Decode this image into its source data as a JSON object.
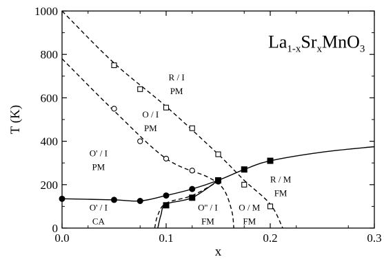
{
  "chart_data": {
    "type": "scatter",
    "title": "La1-xSrxMnO3",
    "formula": {
      "base1": "La",
      "sub1": "1-x",
      "base2": "Sr",
      "sub2": "x",
      "base3": "MnO",
      "sub3": "3"
    },
    "xlabel": "x",
    "ylabel": "T (K)",
    "xlim": [
      0.0,
      0.3
    ],
    "ylim": [
      0,
      1000
    ],
    "x_ticks": [
      {
        "value": 0.0,
        "label": "0.0"
      },
      {
        "value": 0.1,
        "label": "0.1"
      },
      {
        "value": 0.2,
        "label": "0.2"
      },
      {
        "value": 0.3,
        "label": "0.3"
      }
    ],
    "y_ticks": [
      {
        "value": 0,
        "label": "0"
      },
      {
        "value": 200,
        "label": "200"
      },
      {
        "value": 400,
        "label": "400"
      },
      {
        "value": 600,
        "label": "600"
      },
      {
        "value": 800,
        "label": "800"
      },
      {
        "value": 1000,
        "label": "1000"
      }
    ],
    "grid": false,
    "series": [
      {
        "marker": "open-square",
        "points": [
          [
            0.05,
            750
          ],
          [
            0.075,
            640
          ],
          [
            0.1,
            555
          ],
          [
            0.125,
            460
          ],
          [
            0.15,
            340
          ],
          [
            0.175,
            200
          ],
          [
            0.2,
            100
          ]
        ]
      },
      {
        "marker": "open-circle",
        "points": [
          [
            0.05,
            550
          ],
          [
            0.075,
            400
          ],
          [
            0.1,
            320
          ],
          [
            0.125,
            265
          ]
        ]
      },
      {
        "marker": "filled-circle",
        "points": [
          [
            0.0,
            135
          ],
          [
            0.05,
            130
          ],
          [
            0.075,
            125
          ],
          [
            0.1,
            150
          ],
          [
            0.125,
            180
          ],
          [
            0.15,
            215
          ]
        ]
      },
      {
        "marker": "filled-square",
        "points": [
          [
            0.1,
            105
          ],
          [
            0.125,
            140
          ],
          [
            0.15,
            220
          ],
          [
            0.175,
            270
          ],
          [
            0.2,
            310
          ]
        ]
      }
    ],
    "curves": [
      {
        "style": "dashed",
        "points": [
          [
            0.0,
            1000
          ],
          [
            0.05,
            760
          ],
          [
            0.1,
            560
          ],
          [
            0.15,
            340
          ],
          [
            0.175,
            220
          ],
          [
            0.2,
            110
          ],
          [
            0.212,
            0
          ]
        ]
      },
      {
        "style": "dashed",
        "points": [
          [
            0.0,
            780
          ],
          [
            0.05,
            540
          ],
          [
            0.1,
            320
          ],
          [
            0.14,
            235
          ],
          [
            0.155,
            180
          ],
          [
            0.163,
            80
          ],
          [
            0.165,
            0
          ]
        ]
      },
      {
        "style": "solid",
        "points": [
          [
            0.0,
            135
          ],
          [
            0.05,
            130
          ],
          [
            0.075,
            125
          ],
          [
            0.1,
            150
          ],
          [
            0.125,
            180
          ],
          [
            0.15,
            220
          ],
          [
            0.175,
            270
          ],
          [
            0.2,
            310
          ],
          [
            0.25,
            350
          ],
          [
            0.3,
            375
          ]
        ]
      },
      {
        "style": "solid",
        "points": [
          [
            0.092,
            0
          ],
          [
            0.095,
            60
          ],
          [
            0.1,
            110
          ],
          [
            0.125,
            140
          ],
          [
            0.15,
            220
          ]
        ]
      },
      {
        "style": "dashed",
        "points": [
          [
            0.089,
            0
          ],
          [
            0.092,
            60
          ],
          [
            0.1,
            115
          ],
          [
            0.125,
            150
          ],
          [
            0.15,
            215
          ]
        ]
      }
    ],
    "annotations": [
      {
        "lines": [
          "R / I",
          "PM"
        ],
        "x": 0.11,
        "y": 680
      },
      {
        "lines": [
          "O / I",
          "PM"
        ],
        "x": 0.085,
        "y": 510
      },
      {
        "lines": [
          "O' / I",
          "PM"
        ],
        "x": 0.035,
        "y": 330
      },
      {
        "lines": [
          "O' / I",
          "CA"
        ],
        "x": 0.035,
        "y": 80
      },
      {
        "lines": [
          "O'' / I",
          "FM"
        ],
        "x": 0.14,
        "y": 80
      },
      {
        "lines": [
          "O / M",
          "FM"
        ],
        "x": 0.18,
        "y": 80
      },
      {
        "lines": [
          "R / M",
          "FM"
        ],
        "x": 0.21,
        "y": 210
      }
    ]
  }
}
